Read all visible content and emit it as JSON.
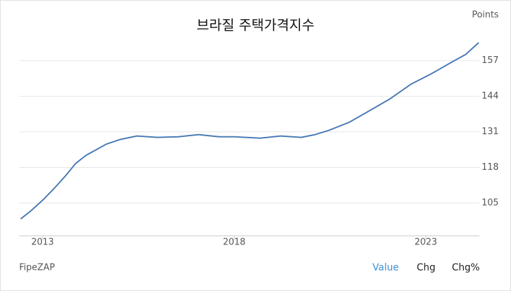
{
  "chart_data": {
    "type": "line",
    "title": "브라질 주택가격지수",
    "y_unit": "Points",
    "source": "FipeZAP",
    "controls": [
      "Value",
      "Chg",
      "Chg%"
    ],
    "active_control": 0,
    "x": [
      2012.43,
      2012.7,
      2013.0,
      2013.32,
      2013.59,
      2013.86,
      2014.13,
      2014.39,
      2014.66,
      2015.02,
      2015.46,
      2016.0,
      2016.54,
      2017.07,
      2017.61,
      2018.0,
      2018.68,
      2019.21,
      2019.75,
      2020.11,
      2020.46,
      2021.0,
      2021.54,
      2022.07,
      2022.61,
      2023.14,
      2023.68,
      2024.04,
      2024.38
    ],
    "series": [
      {
        "name": "Value",
        "color": "#4a7ab5",
        "values": [
          99.2,
          102.2,
          106.0,
          110.6,
          114.8,
          119.4,
          122.4,
          124.4,
          126.5,
          128.2,
          129.5,
          129.0,
          129.2,
          130.0,
          129.2,
          129.2,
          128.7,
          129.5,
          129.0,
          130.0,
          131.5,
          134.5,
          138.8,
          143.1,
          148.4,
          152.2,
          156.5,
          159.3,
          163.6
        ]
      }
    ],
    "xlim": [
      2012.39,
      2024.4
    ],
    "xticks": [
      2013,
      2018,
      2023
    ],
    "ylim": [
      93,
      175
    ],
    "yticks": [
      105,
      118,
      131,
      144,
      157
    ],
    "grid": true
  }
}
